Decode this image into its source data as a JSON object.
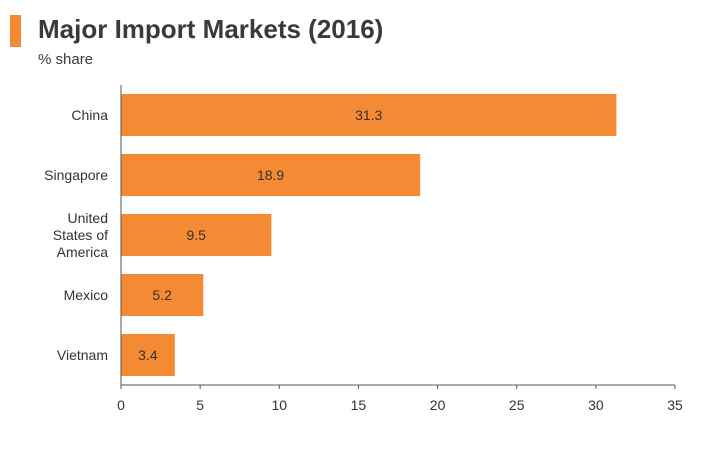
{
  "header": {
    "title": "Major Import Markets (2016)",
    "subtitle": "% share",
    "accent_color": "#f58a34"
  },
  "chart_data": {
    "type": "bar",
    "orientation": "horizontal",
    "title": "Major Import Markets (2016)",
    "subtitle": "% share",
    "categories": [
      "China",
      "Singapore",
      "United States of America",
      "Mexico",
      "Vietnam"
    ],
    "category_label_lines": [
      [
        "China"
      ],
      [
        "Singapore"
      ],
      [
        "United",
        "States of",
        "America"
      ],
      [
        "Mexico"
      ],
      [
        "Vietnam"
      ]
    ],
    "values": [
      31.3,
      18.9,
      9.5,
      5.2,
      3.4
    ],
    "data_labels": [
      "31.3",
      "18.9",
      "9.5",
      "5.2",
      "3.4"
    ],
    "xlim": [
      0,
      35
    ],
    "xticks": [
      0,
      5,
      10,
      15,
      20,
      25,
      30,
      35
    ],
    "xlabel": "",
    "ylabel": "",
    "grid": false,
    "legend": "none",
    "bar_color": "#f58a34"
  }
}
